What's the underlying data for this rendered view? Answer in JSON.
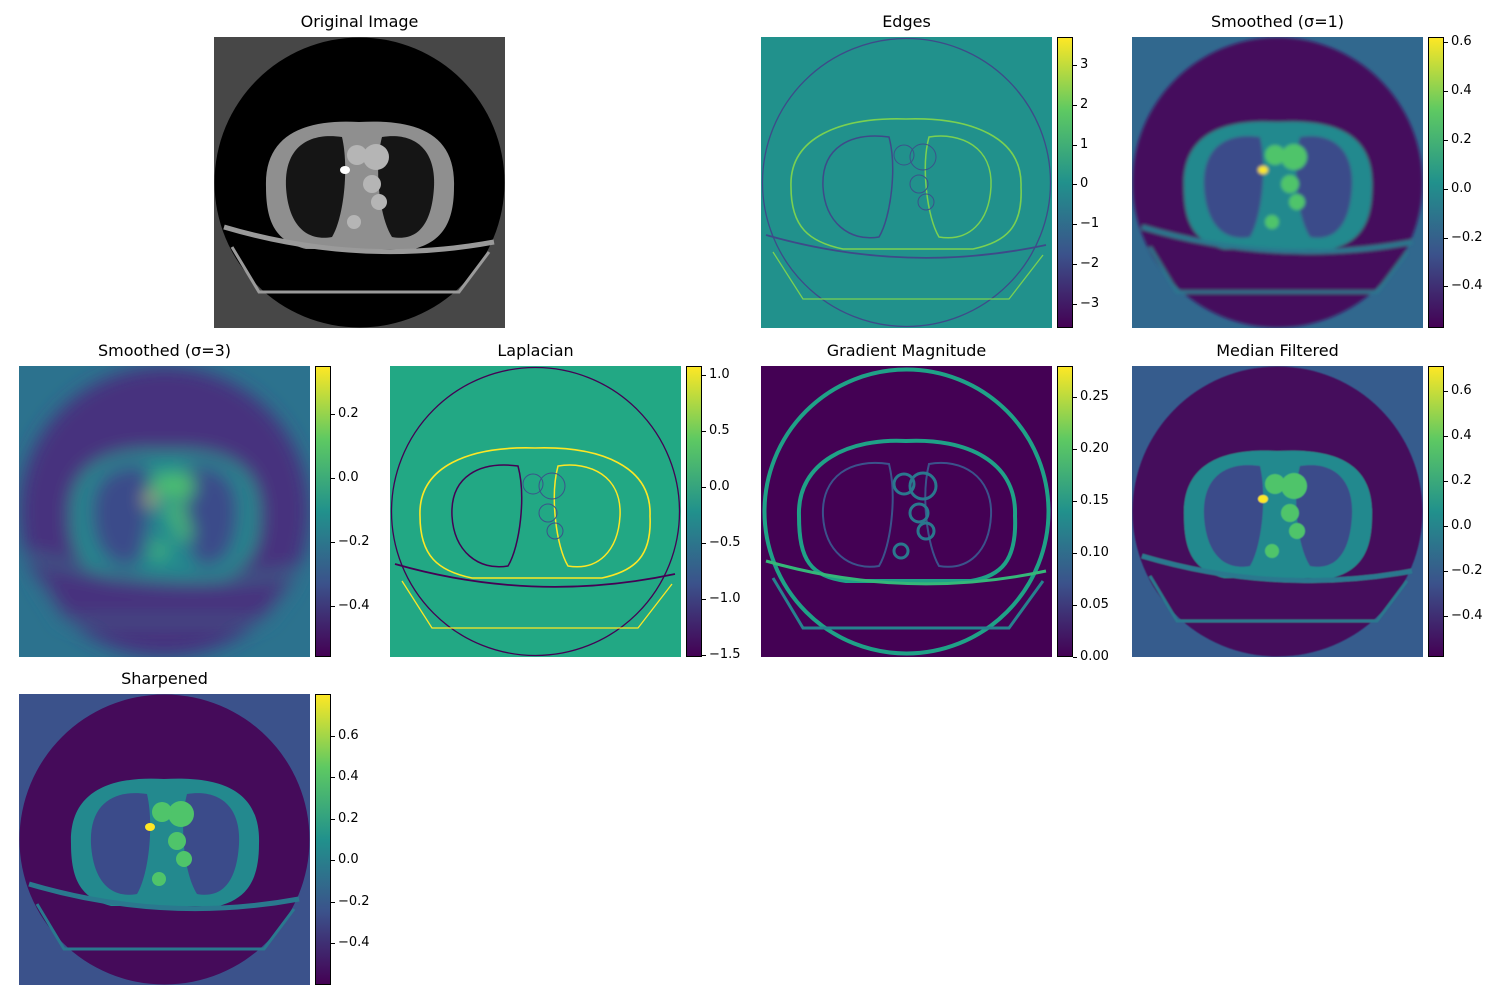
{
  "figure": {
    "background": "#ffffff"
  },
  "colormap": {
    "name": "viridis",
    "stops": [
      "#440154",
      "#3b528b",
      "#21918c",
      "#5ec962",
      "#fde725"
    ]
  },
  "panels": [
    {
      "id": "original",
      "title": "Original Image",
      "kind": "grayscale",
      "colorbar": null
    },
    {
      "id": "edges",
      "title": "Edges",
      "kind": "edges",
      "background": "#21918c",
      "colorbar": {
        "min": -3.6,
        "max": 3.7,
        "ticks": [
          3,
          2,
          1,
          0,
          -1,
          -2,
          -3
        ],
        "labels": [
          "3",
          "2",
          "1",
          "0",
          "−1",
          "−2",
          "−3"
        ]
      }
    },
    {
      "id": "smooth1",
      "title": "Smoothed (σ=1)",
      "kind": "ct",
      "background": "#31688e",
      "outside": "#440f5d",
      "blur": 1.5,
      "colorbar": {
        "min": -0.57,
        "max": 0.62,
        "ticks": [
          0.6,
          0.4,
          0.2,
          0.0,
          -0.2,
          -0.4
        ],
        "labels": [
          "0.6",
          "0.4",
          "0.2",
          "0.0",
          "−0.2",
          "−0.4"
        ]
      }
    },
    {
      "id": "smooth3",
      "title": "Smoothed (σ=3)",
      "kind": "ct",
      "background": "#2c728e",
      "outside": "#46337e",
      "blur": 9,
      "colorbar": {
        "min": -0.56,
        "max": 0.35,
        "ticks": [
          0.2,
          0.0,
          -0.2,
          -0.4
        ],
        "labels": [
          "0.2",
          "0.0",
          "−0.2",
          "−0.4"
        ]
      }
    },
    {
      "id": "laplacian",
      "title": "Laplacian",
      "kind": "laplacian",
      "background": "#22a884",
      "colorbar": {
        "min": -1.52,
        "max": 1.08,
        "ticks": [
          1.0,
          0.5,
          0.0,
          -0.5,
          -1.0,
          -1.5
        ],
        "labels": [
          "1.0",
          "0.5",
          "0.0",
          "−0.5",
          "−1.0",
          "−1.5"
        ]
      }
    },
    {
      "id": "gradient",
      "title": "Gradient Magnitude",
      "kind": "gradient",
      "background": "#440154",
      "colorbar": {
        "min": 0.0,
        "max": 0.28,
        "ticks": [
          0.25,
          0.2,
          0.15,
          0.1,
          0.05,
          0.0
        ],
        "labels": [
          "0.25",
          "0.20",
          "0.15",
          "0.10",
          "0.05",
          "0.00"
        ]
      }
    },
    {
      "id": "median",
      "title": "Median Filtered",
      "kind": "ct",
      "background": "#365c8d",
      "outside": "#450e5c",
      "blur": 0.6,
      "colorbar": {
        "min": -0.58,
        "max": 0.71,
        "ticks": [
          0.6,
          0.4,
          0.2,
          0.0,
          -0.2,
          -0.4
        ],
        "labels": [
          "0.6",
          "0.4",
          "0.2",
          "0.0",
          "−0.2",
          "−0.4"
        ]
      }
    },
    {
      "id": "sharpened",
      "title": "Sharpened",
      "kind": "ct",
      "background": "#3b528b",
      "outside": "#450b5a",
      "blur": 0,
      "colorbar": {
        "min": -0.6,
        "max": 0.8,
        "ticks": [
          0.6,
          0.4,
          0.2,
          0.0,
          -0.2,
          -0.4
        ],
        "labels": [
          "0.6",
          "0.4",
          "0.2",
          "0.0",
          "−0.2",
          "−0.4"
        ]
      }
    }
  ]
}
